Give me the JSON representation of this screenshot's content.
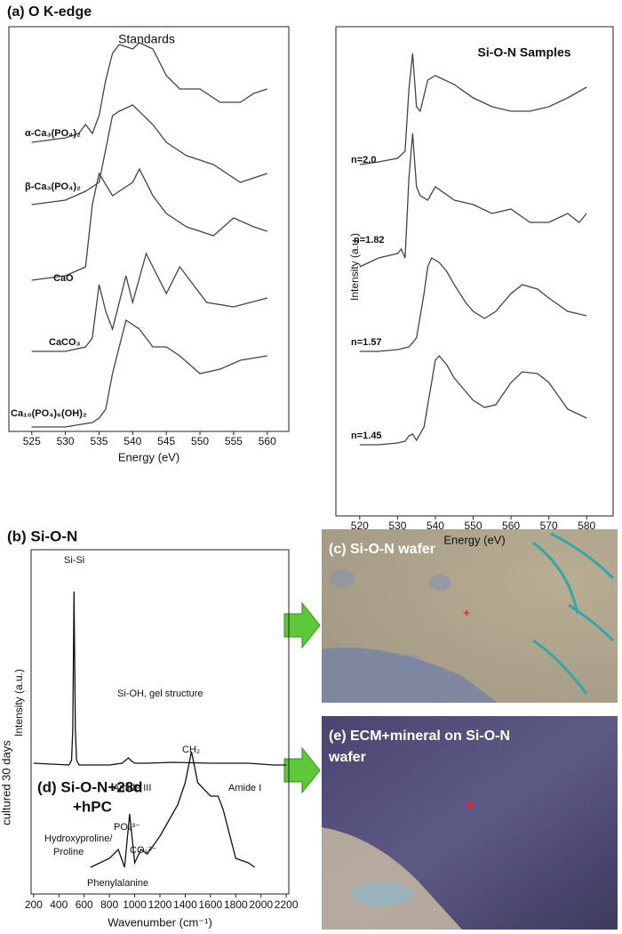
{
  "title": "(a) O K-edge",
  "chart_data": [
    {
      "type": "line",
      "title": "Standards",
      "xlabel": "Energy (eV)",
      "xlim": [
        521.6,
        563.2
      ],
      "xticks": [
        525,
        530,
        535,
        540,
        545,
        550,
        555,
        560
      ],
      "ylim": [
        0,
        455
      ],
      "series": [
        {
          "name": "α-Ca₃(PO₄)₂",
          "color": "#444",
          "x": [
            525,
            530,
            532,
            533,
            534,
            535,
            536,
            537,
            538,
            540,
            541,
            543,
            545,
            547,
            550,
            553,
            556,
            558,
            560
          ],
          "values": [
            325,
            330,
            335,
            345,
            335,
            355,
            395,
            425,
            435,
            430,
            437,
            430,
            400,
            385,
            385,
            370,
            370,
            380,
            385
          ]
        },
        {
          "name": "β-Ca₃(PO₄)₂",
          "color": "#444",
          "x": [
            525,
            530,
            533,
            535,
            537,
            538,
            540,
            543,
            545,
            548,
            552,
            556,
            560
          ],
          "values": [
            255,
            260,
            270,
            280,
            355,
            360,
            367,
            345,
            325,
            310,
            300,
            280,
            290
          ]
        },
        {
          "name": "CaO",
          "color": "#444",
          "x": [
            525,
            530,
            533,
            534,
            535,
            537,
            538,
            540,
            541,
            543,
            545,
            548,
            552,
            555,
            558,
            560
          ],
          "values": [
            170,
            175,
            185,
            255,
            290,
            265,
            270,
            280,
            295,
            265,
            245,
            230,
            220,
            240,
            230,
            225
          ]
        },
        {
          "name": "CaCO₃",
          "color": "#444",
          "x": [
            525,
            530,
            533,
            534,
            535,
            536,
            537,
            539,
            540,
            542,
            543,
            545,
            547,
            549,
            551,
            555,
            560
          ],
          "values": [
            90,
            90,
            95,
            105,
            165,
            135,
            115,
            175,
            145,
            200,
            185,
            155,
            185,
            165,
            145,
            140,
            150
          ]
        },
        {
          "name": "Ca₁₀(PO₄)₆(OH)₂",
          "color": "#444",
          "x": [
            525,
            530,
            534,
            535,
            536,
            537,
            538,
            539,
            541,
            543,
            545,
            547,
            550,
            553,
            556,
            560
          ],
          "values": [
            5,
            5,
            10,
            15,
            25,
            65,
            95,
            125,
            115,
            95,
            95,
            85,
            65,
            70,
            80,
            85
          ]
        }
      ]
    },
    {
      "type": "line",
      "title": "Si-O-N Samples",
      "xlabel": "Energy (eV)",
      "ylabel": "Intensity (a.u.)",
      "xlim": [
        513.7,
        587
      ],
      "xticks": [
        520,
        530,
        540,
        550,
        560,
        570,
        580
      ],
      "ylim": [
        0,
        550
      ],
      "series": [
        {
          "name": "n=2.0",
          "color": "#444",
          "x": [
            520,
            525,
            530,
            532,
            533,
            534,
            535,
            536,
            538,
            540,
            545,
            550,
            555,
            560,
            565,
            570,
            575,
            580
          ],
          "values": [
            395,
            398,
            402,
            410,
            480,
            520,
            460,
            455,
            490,
            495,
            485,
            470,
            460,
            455,
            455,
            460,
            470,
            482
          ]
        },
        {
          "name": "n=1.82",
          "color": "#444",
          "x": [
            520,
            525,
            530,
            531,
            532,
            533,
            534,
            535,
            536,
            538,
            540,
            545,
            550,
            555,
            560,
            565,
            570,
            575,
            578,
            580
          ],
          "values": [
            280,
            290,
            295,
            300,
            290,
            380,
            430,
            370,
            360,
            355,
            370,
            355,
            350,
            340,
            345,
            330,
            330,
            340,
            330,
            340
          ]
        },
        {
          "name": "n=1.57",
          "color": "#444",
          "x": [
            520,
            525,
            530,
            533,
            535,
            537,
            538,
            539,
            541,
            543,
            545,
            548,
            550,
            553,
            556,
            560,
            563,
            567,
            570,
            575,
            580
          ],
          "values": [
            185,
            185,
            187,
            190,
            200,
            250,
            280,
            290,
            285,
            275,
            260,
            240,
            230,
            222,
            230,
            250,
            260,
            255,
            245,
            230,
            225
          ]
        },
        {
          "name": "n=1.45",
          "color": "#444",
          "x": [
            520,
            525,
            530,
            532,
            533,
            534,
            535,
            537,
            539,
            540,
            541,
            543,
            545,
            548,
            550,
            553,
            556,
            560,
            563,
            567,
            570,
            575,
            580
          ],
          "values": [
            80,
            80,
            82,
            84,
            90,
            92,
            85,
            100,
            150,
            175,
            180,
            170,
            155,
            140,
            130,
            122,
            125,
            150,
            162,
            160,
            150,
            120,
            110
          ]
        }
      ]
    },
    {
      "type": "line",
      "panel_labels": [
        "(b) Si-O-N",
        "(d) Si-O-N+28d",
        "+hPC"
      ],
      "xlabel": "Wavenumber (cm⁻¹)",
      "ylabel": "Intensity (a.u.)",
      "ylabel2": "cultured 30 days",
      "xlim": [
        180,
        2220
      ],
      "xticks": [
        200,
        400,
        600,
        800,
        1000,
        1200,
        1400,
        1600,
        1800,
        2000,
        2200
      ],
      "ylim": [
        0,
        387
      ],
      "annotations": [
        "Si-Si",
        "Si-OH, gel structure",
        "CH₂",
        "Amide III",
        "Amide I",
        "PO₄³⁻",
        "CO₃²⁻",
        "Hydroxyproline/",
        "Proline",
        "Phenylalanine"
      ],
      "series": [
        {
          "color": "#111",
          "x": [
            200,
            480,
            500,
            510,
            520,
            530,
            540,
            560,
            800,
            900,
            950,
            970,
            1000,
            1100,
            1300,
            1600,
            1900,
            2100,
            2200
          ],
          "values": [
            147,
            145,
            150,
            185,
            340,
            185,
            150,
            145,
            145,
            147,
            153,
            150,
            147,
            147,
            148,
            147,
            147,
            145,
            145
          ]
        },
        {
          "color": "#111",
          "x": [
            650,
            800,
            870,
            920,
            960,
            1000,
            1050,
            1100,
            1200,
            1300,
            1340,
            1400,
            1450,
            1500,
            1600,
            1660,
            1700,
            1800,
            1900,
            1950
          ],
          "values": [
            30,
            40,
            50,
            30,
            90,
            35,
            50,
            45,
            65,
            90,
            100,
            125,
            160,
            125,
            110,
            110,
            95,
            40,
            35,
            30
          ]
        }
      ]
    }
  ],
  "images": [
    {
      "label": [
        "(c) Si-O-N wafer"
      ]
    },
    {
      "label": [
        "(e) ECM+mineral on Si-O-N",
        "wafer"
      ]
    }
  ]
}
